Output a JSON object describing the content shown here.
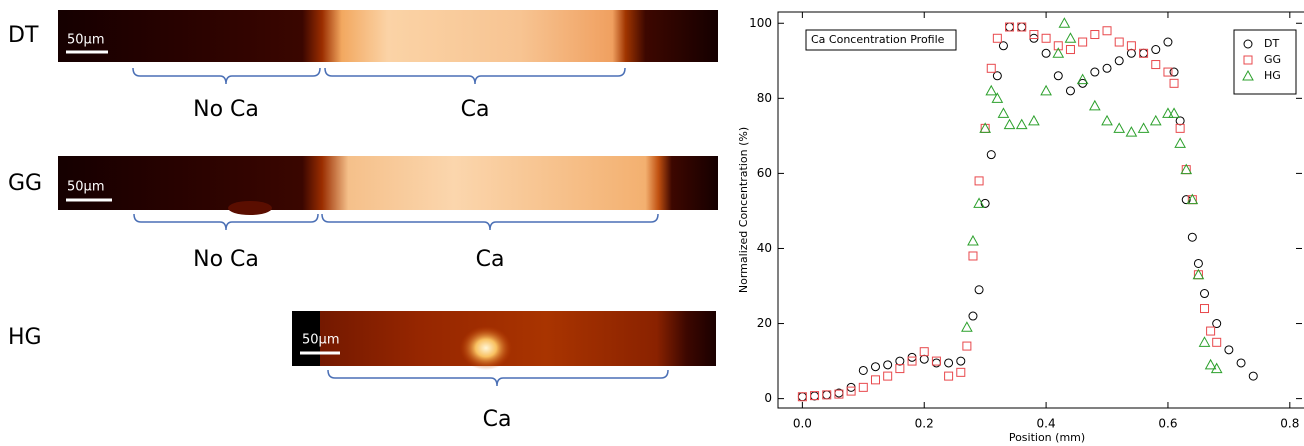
{
  "panels": [
    {
      "label": "DT",
      "scale_bar": "50μm",
      "regions": [
        "No Ca",
        "Ca"
      ]
    },
    {
      "label": "GG",
      "scale_bar": "50μm",
      "regions": [
        "No Ca",
        "Ca"
      ]
    },
    {
      "label": "HG",
      "scale_bar": "50μm",
      "regions": [
        "Ca"
      ]
    }
  ],
  "chart_data": {
    "type": "scatter",
    "annotation": "Ca Concentration Profile",
    "xlabel": "Position (mm)",
    "ylabel": "Normalized Concentration (%)",
    "xlim": [
      -0.04,
      0.82
    ],
    "ylim": [
      -2.5,
      103
    ],
    "xticks": [
      {
        "value": 0,
        "label": "0.0"
      },
      0.2,
      0.4,
      0.6,
      0.8
    ],
    "yticks": [
      0,
      20,
      40,
      60,
      80,
      100
    ],
    "legend": "upper right",
    "series": [
      {
        "name": "DT",
        "color": "#000000",
        "marker": "circle",
        "x": [
          0,
          0.02,
          0.04,
          0.06,
          0.08,
          0.1,
          0.12,
          0.14,
          0.16,
          0.18,
          0.2,
          0.22,
          0.24,
          0.26,
          0.28,
          0.29,
          0.3,
          0.31,
          0.32,
          0.33,
          0.34,
          0.36,
          0.38,
          0.4,
          0.42,
          0.44,
          0.46,
          0.48,
          0.5,
          0.52,
          0.54,
          0.56,
          0.58,
          0.6,
          0.61,
          0.62,
          0.63,
          0.64,
          0.65,
          0.66,
          0.68,
          0.7,
          0.72,
          0.74
        ],
        "y": [
          0.5,
          0.7,
          1,
          1.5,
          3,
          7.5,
          8.5,
          9,
          10,
          11,
          10.5,
          9.5,
          9.5,
          10,
          22,
          29,
          52,
          65,
          86,
          94,
          99,
          99,
          96,
          92,
          86,
          82,
          84,
          87,
          88,
          90,
          92,
          92,
          93,
          95,
          87,
          74,
          53,
          43,
          36,
          28,
          20,
          13,
          9.5,
          6
        ]
      },
      {
        "name": "GG",
        "color": "#e8484c",
        "marker": "square",
        "x": [
          0,
          0.02,
          0.04,
          0.06,
          0.08,
          0.1,
          0.12,
          0.14,
          0.16,
          0.18,
          0.2,
          0.22,
          0.24,
          0.26,
          0.27,
          0.28,
          0.29,
          0.3,
          0.31,
          0.32,
          0.34,
          0.36,
          0.38,
          0.4,
          0.42,
          0.44,
          0.46,
          0.48,
          0.5,
          0.52,
          0.54,
          0.56,
          0.58,
          0.6,
          0.61,
          0.62,
          0.63,
          0.64,
          0.65,
          0.66,
          0.67,
          0.68
        ],
        "y": [
          0.5,
          0.8,
          1,
          1.2,
          2,
          3,
          5,
          6,
          8,
          10,
          12.5,
          10,
          6,
          7,
          14,
          38,
          58,
          72,
          88,
          96,
          99,
          99,
          97,
          96,
          94,
          93,
          95,
          97,
          98,
          95,
          94,
          92,
          89,
          87,
          84,
          72,
          61,
          53,
          33,
          24,
          18,
          15
        ]
      },
      {
        "name": "HG",
        "color": "#2ca02c",
        "marker": "triangle",
        "x": [
          0.27,
          0.28,
          0.29,
          0.3,
          0.31,
          0.32,
          0.33,
          0.34,
          0.36,
          0.38,
          0.4,
          0.42,
          0.43,
          0.44,
          0.46,
          0.48,
          0.5,
          0.52,
          0.54,
          0.56,
          0.58,
          0.6,
          0.61,
          0.62,
          0.63,
          0.64,
          0.65,
          0.66,
          0.67,
          0.68
        ],
        "y": [
          19,
          42,
          52,
          72,
          82,
          80,
          76,
          73,
          73,
          74,
          82,
          92,
          100,
          96,
          85,
          78,
          74,
          72,
          71,
          72,
          74,
          76,
          76,
          68,
          61,
          53,
          33,
          15,
          9,
          8
        ]
      }
    ]
  }
}
